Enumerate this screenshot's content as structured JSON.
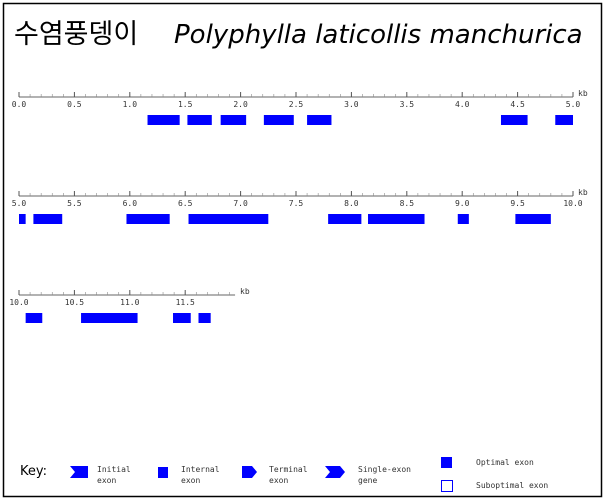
{
  "header": {
    "title_korean": "수염풍뎅이",
    "title_species": "Polyphylla laticollis manchurica"
  },
  "rows": [
    {
      "xlim": [
        0,
        5.0
      ],
      "unit": "kb",
      "ticks": [
        {
          "value": 0,
          "label": "0.0"
        },
        {
          "value": 0.5,
          "label": "0.5"
        },
        {
          "value": 1,
          "label": "1.0"
        },
        {
          "value": 1.5,
          "label": "1.5"
        },
        {
          "value": 2,
          "label": "2.0"
        },
        {
          "value": 2.5,
          "label": "2.5"
        },
        {
          "value": 3,
          "label": "3.0"
        },
        {
          "value": 3.5,
          "label": "3.5"
        },
        {
          "value": 4,
          "label": "4.0"
        },
        {
          "value": 4.5,
          "label": "4.5"
        },
        {
          "value": 5,
          "label": "5.0"
        }
      ],
      "exons": [
        {
          "start": 1.16,
          "end": 1.45
        },
        {
          "start": 1.52,
          "end": 1.74
        },
        {
          "start": 1.82,
          "end": 2.05
        },
        {
          "start": 2.21,
          "end": 2.48
        },
        {
          "start": 2.6,
          "end": 2.82
        },
        {
          "start": 4.35,
          "end": 4.59
        },
        {
          "start": 4.84,
          "end": 5.0
        }
      ]
    },
    {
      "xlim": [
        5.0,
        10.0
      ],
      "unit": "kb",
      "ticks": [
        {
          "value": 5,
          "label": "5.0"
        },
        {
          "value": 5.5,
          "label": "5.5"
        },
        {
          "value": 6,
          "label": "6.0"
        },
        {
          "value": 6.5,
          "label": "6.5"
        },
        {
          "value": 7,
          "label": "7.0"
        },
        {
          "value": 7.5,
          "label": "7.5"
        },
        {
          "value": 8,
          "label": "8.0"
        },
        {
          "value": 8.5,
          "label": "8.5"
        },
        {
          "value": 9,
          "label": "9.0"
        },
        {
          "value": 9.5,
          "label": "9.5"
        },
        {
          "value": 10,
          "label": "10.0"
        }
      ],
      "exons": [
        {
          "start": 5.0,
          "end": 5.06
        },
        {
          "start": 5.13,
          "end": 5.39
        },
        {
          "start": 5.97,
          "end": 6.36
        },
        {
          "start": 6.53,
          "end": 7.25
        },
        {
          "start": 7.79,
          "end": 8.09
        },
        {
          "start": 8.15,
          "end": 8.66
        },
        {
          "start": 8.96,
          "end": 9.06
        },
        {
          "start": 9.48,
          "end": 9.8
        }
      ]
    },
    {
      "xlim": [
        10.0,
        11.95
      ],
      "unit": "kb",
      "ticks": [
        {
          "value": 10,
          "label": "10.0"
        },
        {
          "value": 10.5,
          "label": "10.5"
        },
        {
          "value": 11,
          "label": "11.0"
        },
        {
          "value": 11.5,
          "label": "11.5"
        }
      ],
      "exons": [
        {
          "start": 10.06,
          "end": 10.21
        },
        {
          "start": 10.56,
          "end": 11.07
        },
        {
          "start": 11.39,
          "end": 11.55
        },
        {
          "start": 11.62,
          "end": 11.73
        }
      ]
    }
  ],
  "key": {
    "label": "Key:",
    "items": [
      [
        "Initial",
        "exon"
      ],
      [
        "Internal",
        "exon"
      ],
      [
        "Terminal",
        "exon"
      ],
      [
        "Single-exon",
        "gene"
      ]
    ],
    "optimal": "Optimal exon",
    "suboptimal": "Suboptimal exon"
  }
}
